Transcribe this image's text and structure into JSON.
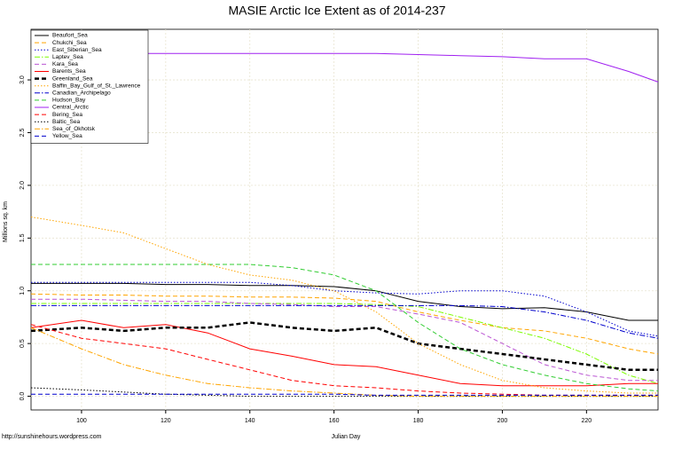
{
  "chart_data": {
    "type": "line",
    "title": "MASIE Arctic Ice Extent as of 2014-237",
    "x_label": "Julian Day",
    "y_label": "Millions sq. km",
    "footer": "http://sunshinehours.wordpress.com",
    "xlim": [
      88,
      237
    ],
    "ylim": [
      -0.13,
      3.48
    ],
    "xticks": [
      100,
      120,
      140,
      160,
      180,
      200,
      220
    ],
    "yticks": [
      {
        "value": 0,
        "label": "0.0"
      },
      0.5,
      {
        "value": 1,
        "label": "1.0"
      },
      1.5,
      {
        "value": 2,
        "label": "2.0"
      },
      2.5,
      {
        "value": 3,
        "label": "3.0"
      }
    ],
    "grid": true,
    "legend": "top-left",
    "x": [
      88,
      100,
      110,
      120,
      130,
      140,
      150,
      160,
      170,
      180,
      190,
      200,
      210,
      220,
      230,
      237
    ],
    "series": [
      {
        "name": "Beaufort_Sea",
        "color": "#000000",
        "style": "solid",
        "width": 1,
        "values": [
          1.07,
          1.07,
          1.07,
          1.06,
          1.06,
          1.05,
          1.05,
          1.04,
          1.0,
          0.9,
          0.85,
          0.83,
          0.84,
          0.8,
          0.72,
          0.72
        ]
      },
      {
        "name": "Chukchi_Sea",
        "color": "#ffa500",
        "style": "dashed",
        "width": 1,
        "values": [
          0.97,
          0.96,
          0.96,
          0.95,
          0.95,
          0.94,
          0.94,
          0.93,
          0.9,
          0.8,
          0.72,
          0.65,
          0.62,
          0.55,
          0.45,
          0.4
        ]
      },
      {
        "name": "East_Siberian_Sea",
        "color": "#0000cd",
        "style": "dotted",
        "width": 1,
        "values": [
          1.08,
          1.08,
          1.08,
          1.08,
          1.08,
          1.08,
          1.05,
          1.0,
          0.98,
          0.97,
          1.0,
          1.0,
          0.95,
          0.8,
          0.62,
          0.57
        ]
      },
      {
        "name": "Laptev_Sea",
        "color": "#7cfc00",
        "style": "dashdot",
        "width": 1,
        "values": [
          0.88,
          0.88,
          0.88,
          0.88,
          0.88,
          0.88,
          0.88,
          0.88,
          0.87,
          0.85,
          0.75,
          0.65,
          0.55,
          0.4,
          0.2,
          0.12
        ]
      },
      {
        "name": "Kara_Sea",
        "color": "#ba55d3",
        "style": "dashed",
        "width": 1,
        "values": [
          0.92,
          0.92,
          0.91,
          0.9,
          0.9,
          0.88,
          0.87,
          0.85,
          0.85,
          0.78,
          0.7,
          0.5,
          0.3,
          0.2,
          0.15,
          0.15
        ]
      },
      {
        "name": "Barents_Sea",
        "color": "#ff0000",
        "style": "solid",
        "width": 1,
        "values": [
          0.65,
          0.72,
          0.65,
          0.68,
          0.6,
          0.45,
          0.38,
          0.3,
          0.28,
          0.2,
          0.12,
          0.1,
          0.1,
          0.1,
          0.12,
          0.12
        ]
      },
      {
        "name": "Greenland_Sea",
        "color": "#000000",
        "style": "dashed",
        "width": 2.5,
        "values": [
          0.62,
          0.65,
          0.62,
          0.65,
          0.65,
          0.7,
          0.65,
          0.62,
          0.65,
          0.5,
          0.45,
          0.4,
          0.35,
          0.3,
          0.25,
          0.25
        ]
      },
      {
        "name": "Baffin_Bay_Gulf_of_St._Lawrence",
        "color": "#ffa500",
        "style": "dotted",
        "width": 1,
        "values": [
          1.7,
          1.62,
          1.55,
          1.4,
          1.25,
          1.15,
          1.1,
          1.0,
          0.8,
          0.5,
          0.3,
          0.15,
          0.08,
          0.05,
          0.03,
          0.03
        ]
      },
      {
        "name": "Canadian_Archipelago",
        "color": "#0000cd",
        "style": "dashdot",
        "width": 1,
        "values": [
          0.86,
          0.86,
          0.86,
          0.86,
          0.86,
          0.86,
          0.86,
          0.86,
          0.86,
          0.86,
          0.86,
          0.85,
          0.8,
          0.72,
          0.6,
          0.55
        ]
      },
      {
        "name": "Hudson_Bay",
        "color": "#32cd32",
        "style": "dashed",
        "width": 1,
        "values": [
          1.25,
          1.25,
          1.25,
          1.25,
          1.25,
          1.25,
          1.22,
          1.15,
          1.0,
          0.7,
          0.45,
          0.3,
          0.2,
          0.12,
          0.07,
          0.05
        ]
      },
      {
        "name": "Central_Arctic",
        "color": "#a020f0",
        "style": "solid",
        "width": 1,
        "values": [
          3.23,
          3.25,
          3.25,
          3.25,
          3.25,
          3.25,
          3.25,
          3.25,
          3.25,
          3.24,
          3.23,
          3.22,
          3.2,
          3.2,
          3.08,
          2.98
        ]
      },
      {
        "name": "Bering_Sea",
        "color": "#ff0000",
        "style": "dashed",
        "width": 1,
        "values": [
          0.68,
          0.55,
          0.5,
          0.45,
          0.35,
          0.25,
          0.15,
          0.1,
          0.08,
          0.05,
          0.03,
          0.02,
          0.01,
          0.01,
          0.01,
          0.01
        ]
      },
      {
        "name": "Baltic_Sea",
        "color": "#000000",
        "style": "dotted",
        "width": 1,
        "values": [
          0.08,
          0.06,
          0.04,
          0.02,
          0.01,
          0,
          0,
          0,
          0,
          0,
          0,
          0,
          0,
          0,
          0,
          0
        ]
      },
      {
        "name": "Sea_of_Okhotsk",
        "color": "#ffa500",
        "style": "dashdot",
        "width": 1,
        "values": [
          0.65,
          0.45,
          0.3,
          0.2,
          0.12,
          0.08,
          0.05,
          0.03,
          0.01,
          0,
          0,
          0,
          0,
          0,
          0,
          0
        ]
      },
      {
        "name": "Yellow_Sea",
        "color": "#0000cd",
        "style": "dashed",
        "width": 1,
        "values": [
          0.02,
          0.02,
          0.02,
          0.02,
          0.02,
          0.02,
          0.02,
          0.02,
          0.01,
          0.01,
          0.01,
          0.01,
          0.01,
          0.01,
          0.01,
          0.01
        ]
      }
    ]
  }
}
